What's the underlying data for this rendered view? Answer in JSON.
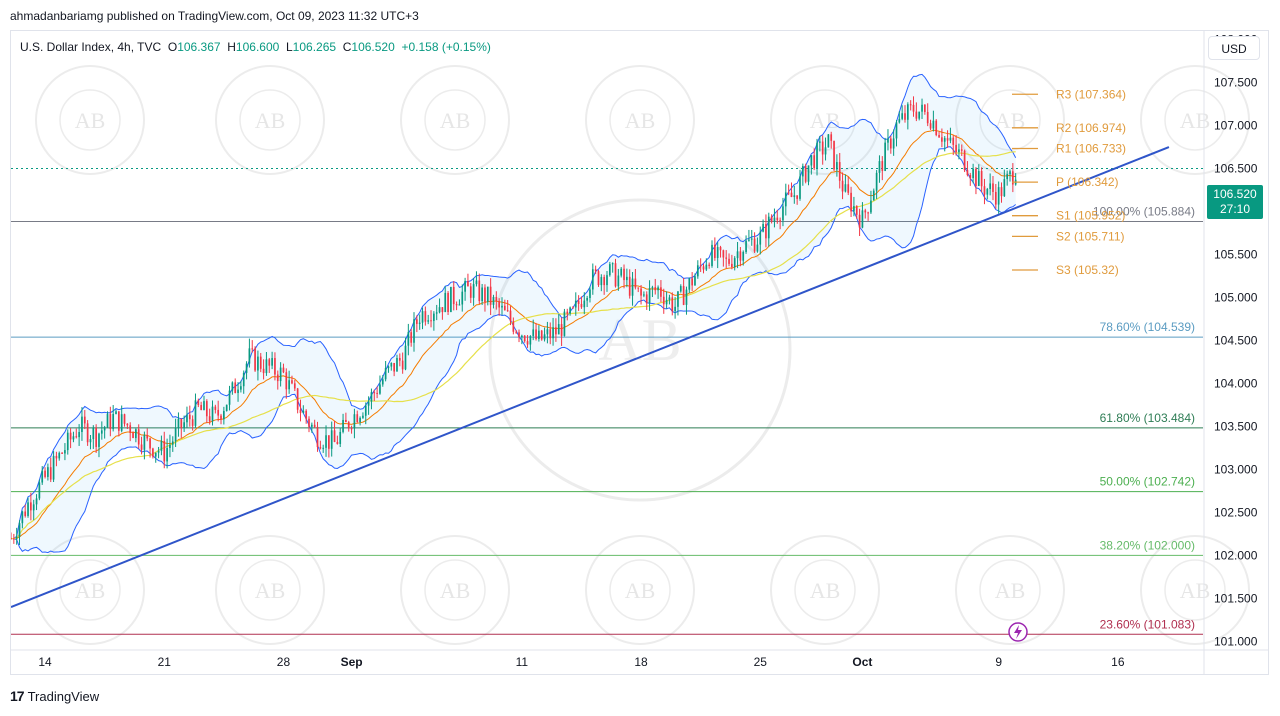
{
  "header": {
    "publish_text": "ahmadanbariamg published on TradingView.com, Oct 09, 2023 11:32 UTC+3"
  },
  "legend": {
    "symbol": "U.S. Dollar Index, 4h, TVC",
    "o_label": "O",
    "o_value": "106.367",
    "h_label": "H",
    "h_value": "106.600",
    "l_label": "L",
    "l_value": "106.265",
    "c_label": "C",
    "c_value": "106.520",
    "change": "+0.158 (+0.15%)"
  },
  "currency_button": "USD",
  "current_price": {
    "price": "106.520",
    "countdown": "27:10"
  },
  "footer": {
    "brand": "TradingView",
    "logo_text": "17"
  },
  "watermark_text": "AB",
  "colors": {
    "up": "#089981",
    "down": "#f23645",
    "bollinger": "#2962ff",
    "ema": "#f57c00",
    "sma": "#e6e04a",
    "trendline": "#2f55c9",
    "pivot": "#e09b3d"
  },
  "chart_data": {
    "type": "candlestick",
    "title": "U.S. Dollar Index, 4h, TVC",
    "ylim": [
      100.9,
      108.1
    ],
    "y_ticks": [
      "108.000",
      "107.500",
      "107.000",
      "106.500",
      "106.000",
      "105.500",
      "105.000",
      "104.500",
      "104.000",
      "103.500",
      "103.000",
      "102.500",
      "102.000",
      "101.500",
      "101.000"
    ],
    "y_tick_values": [
      108.0,
      107.5,
      107.0,
      106.5,
      106.0,
      105.5,
      105.0,
      104.5,
      104.0,
      103.5,
      103.0,
      102.5,
      102.0,
      101.5,
      101.0
    ],
    "x_ticks": [
      {
        "label": "14",
        "day": 0
      },
      {
        "label": "21",
        "day": 7
      },
      {
        "label": "28",
        "day": 14
      },
      {
        "label": "Sep",
        "day": 18
      },
      {
        "label": "11",
        "day": 28
      },
      {
        "label": "18",
        "day": 35
      },
      {
        "label": "25",
        "day": 42
      },
      {
        "label": "Oct",
        "day": 48
      },
      {
        "label": "9",
        "day": 56
      },
      {
        "label": "16",
        "day": 63
      }
    ],
    "x_range_days": [
      -2,
      68
    ],
    "fib_levels": [
      {
        "label": "100.00% (105.884)",
        "value": 105.884,
        "color": "#787b86"
      },
      {
        "label": "78.60% (104.539)",
        "value": 104.539,
        "color": "#5b9cc2"
      },
      {
        "label": "61.80% (103.484)",
        "value": 103.484,
        "color": "#2e7d55"
      },
      {
        "label": "50.00% (102.742)",
        "value": 102.742,
        "color": "#4caf50"
      },
      {
        "label": "38.20% (102.000)",
        "value": 102.0,
        "color": "#66bb6a"
      },
      {
        "label": "23.60% (101.083)",
        "value": 101.083,
        "color": "#b03050"
      }
    ],
    "pivots": [
      {
        "label": "R3 (107.364)",
        "value": 107.364
      },
      {
        "label": "R2 (106.974)",
        "value": 106.974
      },
      {
        "label": "R1 (106.733)",
        "value": 106.733
      },
      {
        "label": "P (106.342)",
        "value": 106.342
      },
      {
        "label": "S1 (105.952)",
        "value": 105.952
      },
      {
        "label": "S2 (105.711)",
        "value": 105.711
      },
      {
        "label": "S3 (105.32)",
        "value": 105.32
      }
    ],
    "trendline": {
      "from": {
        "day": -2,
        "price": 101.4
      },
      "to": {
        "day": 66,
        "price": 106.75
      }
    },
    "close_path": [
      [
        -2,
        102.2
      ],
      [
        -1,
        102.6
      ],
      [
        0,
        102.9
      ],
      [
        1,
        103.2
      ],
      [
        2,
        103.5
      ],
      [
        3,
        103.4
      ],
      [
        4,
        103.6
      ],
      [
        5,
        103.5
      ],
      [
        6,
        103.3
      ],
      [
        7,
        103.2
      ],
      [
        8,
        103.5
      ],
      [
        9,
        103.7
      ],
      [
        10,
        103.6
      ],
      [
        11,
        103.9
      ],
      [
        12,
        104.3
      ],
      [
        13,
        104.2
      ],
      [
        14,
        104.1
      ],
      [
        15,
        103.7
      ],
      [
        16,
        103.4
      ],
      [
        17,
        103.3
      ],
      [
        18,
        103.6
      ],
      [
        19,
        103.8
      ],
      [
        20,
        104.1
      ],
      [
        21,
        104.3
      ],
      [
        22,
        104.8
      ],
      [
        23,
        104.9
      ],
      [
        24,
        105.0
      ],
      [
        25,
        105.1
      ],
      [
        26,
        105.0
      ],
      [
        27,
        104.8
      ],
      [
        28,
        104.6
      ],
      [
        29,
        104.5
      ],
      [
        30,
        104.6
      ],
      [
        31,
        104.8
      ],
      [
        32,
        105.2
      ],
      [
        33,
        105.3
      ],
      [
        34,
        105.2
      ],
      [
        35,
        105.0
      ],
      [
        36,
        105.1
      ],
      [
        37,
        104.9
      ],
      [
        38,
        105.2
      ],
      [
        39,
        105.5
      ],
      [
        40,
        105.4
      ],
      [
        41,
        105.6
      ],
      [
        42,
        105.7
      ],
      [
        43,
        106.0
      ],
      [
        44,
        106.2
      ],
      [
        45,
        106.6
      ],
      [
        46,
        106.8
      ],
      [
        47,
        106.2
      ],
      [
        48,
        105.9
      ],
      [
        49,
        106.5
      ],
      [
        50,
        107.0
      ],
      [
        51,
        107.2
      ],
      [
        52,
        107.1
      ],
      [
        53,
        106.8
      ],
      [
        54,
        106.6
      ],
      [
        55,
        106.3
      ],
      [
        56,
        106.2
      ],
      [
        57,
        106.5
      ]
    ]
  }
}
